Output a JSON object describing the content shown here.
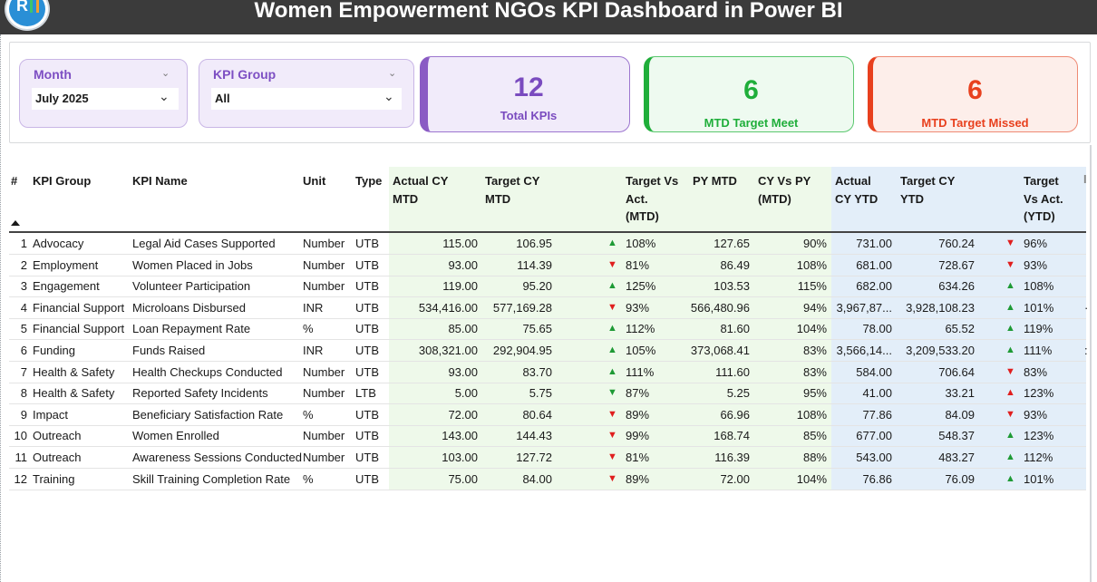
{
  "title": "Women Empowerment NGOs KPI Dashboard  in Power BI",
  "logo": {
    "icon": "r-chart-logo"
  },
  "filters": {
    "month": {
      "label": "Month",
      "value": "July 2025"
    },
    "kpi_group": {
      "label": "KPI Group",
      "value": "All"
    }
  },
  "cards": {
    "total": {
      "value": "12",
      "label": "Total KPIs",
      "color": "#8a5bc4"
    },
    "meet": {
      "value": "6",
      "label": "MTD Target Meet",
      "color": "#1fae3a"
    },
    "missed": {
      "value": "6",
      "label": "MTD Target Missed",
      "color": "#e8401e"
    }
  },
  "table": {
    "headers": {
      "num": "#",
      "kpi_group": "KPI Group",
      "kpi_name": "KPI Name",
      "unit": "Unit",
      "type": "Type",
      "actual_cy_mtd": [
        "Actual CY",
        "MTD"
      ],
      "target_cy_mtd": [
        "Target CY",
        "MTD"
      ],
      "tva_mtd": [
        "Target Vs",
        "Act.",
        "(MTD)"
      ],
      "py_mtd": [
        "PY MTD"
      ],
      "cy_vs_py_mtd": [
        "CY Vs PY",
        "(MTD)"
      ],
      "actual_cy_ytd": [
        "Actual",
        "CY YTD"
      ],
      "target_cy_ytd": [
        "Target CY",
        "YTD"
      ],
      "tva_ytd": [
        "Target",
        "Vs Act.",
        "(YTD)"
      ],
      "overflow": "I"
    },
    "rows": [
      {
        "num": "1",
        "group": "Advocacy",
        "name": "Legal Aid Cases Supported",
        "unit": "Number",
        "type": "UTB",
        "actual_mtd": "115.00",
        "target_mtd": "106.95",
        "mtd_dir": "up",
        "mtd_pct": "108%",
        "py_mtd": "127.65",
        "cy_vs_py": "90%",
        "actual_ytd": "731.00",
        "target_ytd": "760.24",
        "ytd_dir": "down",
        "ytd_pct": "96%",
        "overflow": ""
      },
      {
        "num": "2",
        "group": "Employment",
        "name": "Women Placed in Jobs",
        "unit": "Number",
        "type": "UTB",
        "actual_mtd": "93.00",
        "target_mtd": "114.39",
        "mtd_dir": "down",
        "mtd_pct": "81%",
        "py_mtd": "86.49",
        "cy_vs_py": "108%",
        "actual_ytd": "681.00",
        "target_ytd": "728.67",
        "ytd_dir": "down",
        "ytd_pct": "93%",
        "overflow": ""
      },
      {
        "num": "3",
        "group": "Engagement",
        "name": "Volunteer Participation",
        "unit": "Number",
        "type": "UTB",
        "actual_mtd": "119.00",
        "target_mtd": "95.20",
        "mtd_dir": "up",
        "mtd_pct": "125%",
        "py_mtd": "103.53",
        "cy_vs_py": "115%",
        "actual_ytd": "682.00",
        "target_ytd": "634.26",
        "ytd_dir": "up",
        "ytd_pct": "108%",
        "overflow": ""
      },
      {
        "num": "4",
        "group": "Financial Support",
        "name": "Microloans Disbursed",
        "unit": "INR",
        "type": "UTB",
        "actual_mtd": "534,416.00",
        "target_mtd": "577,169.28",
        "mtd_dir": "down",
        "mtd_pct": "93%",
        "py_mtd": "566,480.96",
        "cy_vs_py": "94%",
        "actual_ytd": "3,967,87...",
        "target_ytd": "3,928,108.23",
        "ytd_dir": "up",
        "ytd_pct": "101%",
        "overflow": "·"
      },
      {
        "num": "5",
        "group": "Financial Support",
        "name": "Loan Repayment Rate",
        "unit": "%",
        "type": "UTB",
        "actual_mtd": "85.00",
        "target_mtd": "75.65",
        "mtd_dir": "up",
        "mtd_pct": "112%",
        "py_mtd": "81.60",
        "cy_vs_py": "104%",
        "actual_ytd": "78.00",
        "target_ytd": "65.52",
        "ytd_dir": "up",
        "ytd_pct": "119%",
        "overflow": ""
      },
      {
        "num": "6",
        "group": "Funding",
        "name": "Funds Raised",
        "unit": "INR",
        "type": "UTB",
        "actual_mtd": "308,321.00",
        "target_mtd": "292,904.95",
        "mtd_dir": "up",
        "mtd_pct": "105%",
        "py_mtd": "373,068.41",
        "cy_vs_py": "83%",
        "actual_ytd": "3,566,14...",
        "target_ytd": "3,209,533.20",
        "ytd_dir": "up",
        "ytd_pct": "111%",
        "overflow": ":"
      },
      {
        "num": "7",
        "group": "Health & Safety",
        "name": "Health Checkups Conducted",
        "unit": "Number",
        "type": "UTB",
        "actual_mtd": "93.00",
        "target_mtd": "83.70",
        "mtd_dir": "up",
        "mtd_pct": "111%",
        "py_mtd": "111.60",
        "cy_vs_py": "83%",
        "actual_ytd": "584.00",
        "target_ytd": "706.64",
        "ytd_dir": "down",
        "ytd_pct": "83%",
        "overflow": ""
      },
      {
        "num": "8",
        "group": "Health & Safety",
        "name": "Reported Safety Incidents",
        "unit": "Number",
        "type": "LTB",
        "actual_mtd": "5.00",
        "target_mtd": "5.75",
        "mtd_dir": "down-green",
        "mtd_pct": "87%",
        "py_mtd": "5.25",
        "cy_vs_py": "95%",
        "actual_ytd": "41.00",
        "target_ytd": "33.21",
        "ytd_dir": "up-red",
        "ytd_pct": "123%",
        "overflow": ""
      },
      {
        "num": "9",
        "group": "Impact",
        "name": "Beneficiary Satisfaction Rate",
        "unit": "%",
        "type": "UTB",
        "actual_mtd": "72.00",
        "target_mtd": "80.64",
        "mtd_dir": "down",
        "mtd_pct": "89%",
        "py_mtd": "66.96",
        "cy_vs_py": "108%",
        "actual_ytd": "77.86",
        "target_ytd": "84.09",
        "ytd_dir": "down",
        "ytd_pct": "93%",
        "overflow": ""
      },
      {
        "num": "10",
        "group": "Outreach",
        "name": "Women Enrolled",
        "unit": "Number",
        "type": "UTB",
        "actual_mtd": "143.00",
        "target_mtd": "144.43",
        "mtd_dir": "down",
        "mtd_pct": "99%",
        "py_mtd": "168.74",
        "cy_vs_py": "85%",
        "actual_ytd": "677.00",
        "target_ytd": "548.37",
        "ytd_dir": "up",
        "ytd_pct": "123%",
        "overflow": ""
      },
      {
        "num": "11",
        "group": "Outreach",
        "name": "Awareness Sessions Conducted",
        "unit": "Number",
        "type": "UTB",
        "actual_mtd": "103.00",
        "target_mtd": "127.72",
        "mtd_dir": "down",
        "mtd_pct": "81%",
        "py_mtd": "116.39",
        "cy_vs_py": "88%",
        "actual_ytd": "543.00",
        "target_ytd": "483.27",
        "ytd_dir": "up",
        "ytd_pct": "112%",
        "overflow": ""
      },
      {
        "num": "12",
        "group": "Training",
        "name": "Skill Training Completion Rate",
        "unit": "%",
        "type": "UTB",
        "actual_mtd": "75.00",
        "target_mtd": "84.00",
        "mtd_dir": "down",
        "mtd_pct": "89%",
        "py_mtd": "72.00",
        "cy_vs_py": "104%",
        "actual_ytd": "76.86",
        "target_ytd": "76.09",
        "ytd_dir": "up",
        "ytd_pct": "101%",
        "overflow": ""
      }
    ]
  },
  "colors": {
    "up": "#1e9a35",
    "down": "#e01e1e",
    "mtd_band": "#eef9ea",
    "ytd_band": "#e3eef9",
    "title_bar": "#3b3b3b"
  }
}
